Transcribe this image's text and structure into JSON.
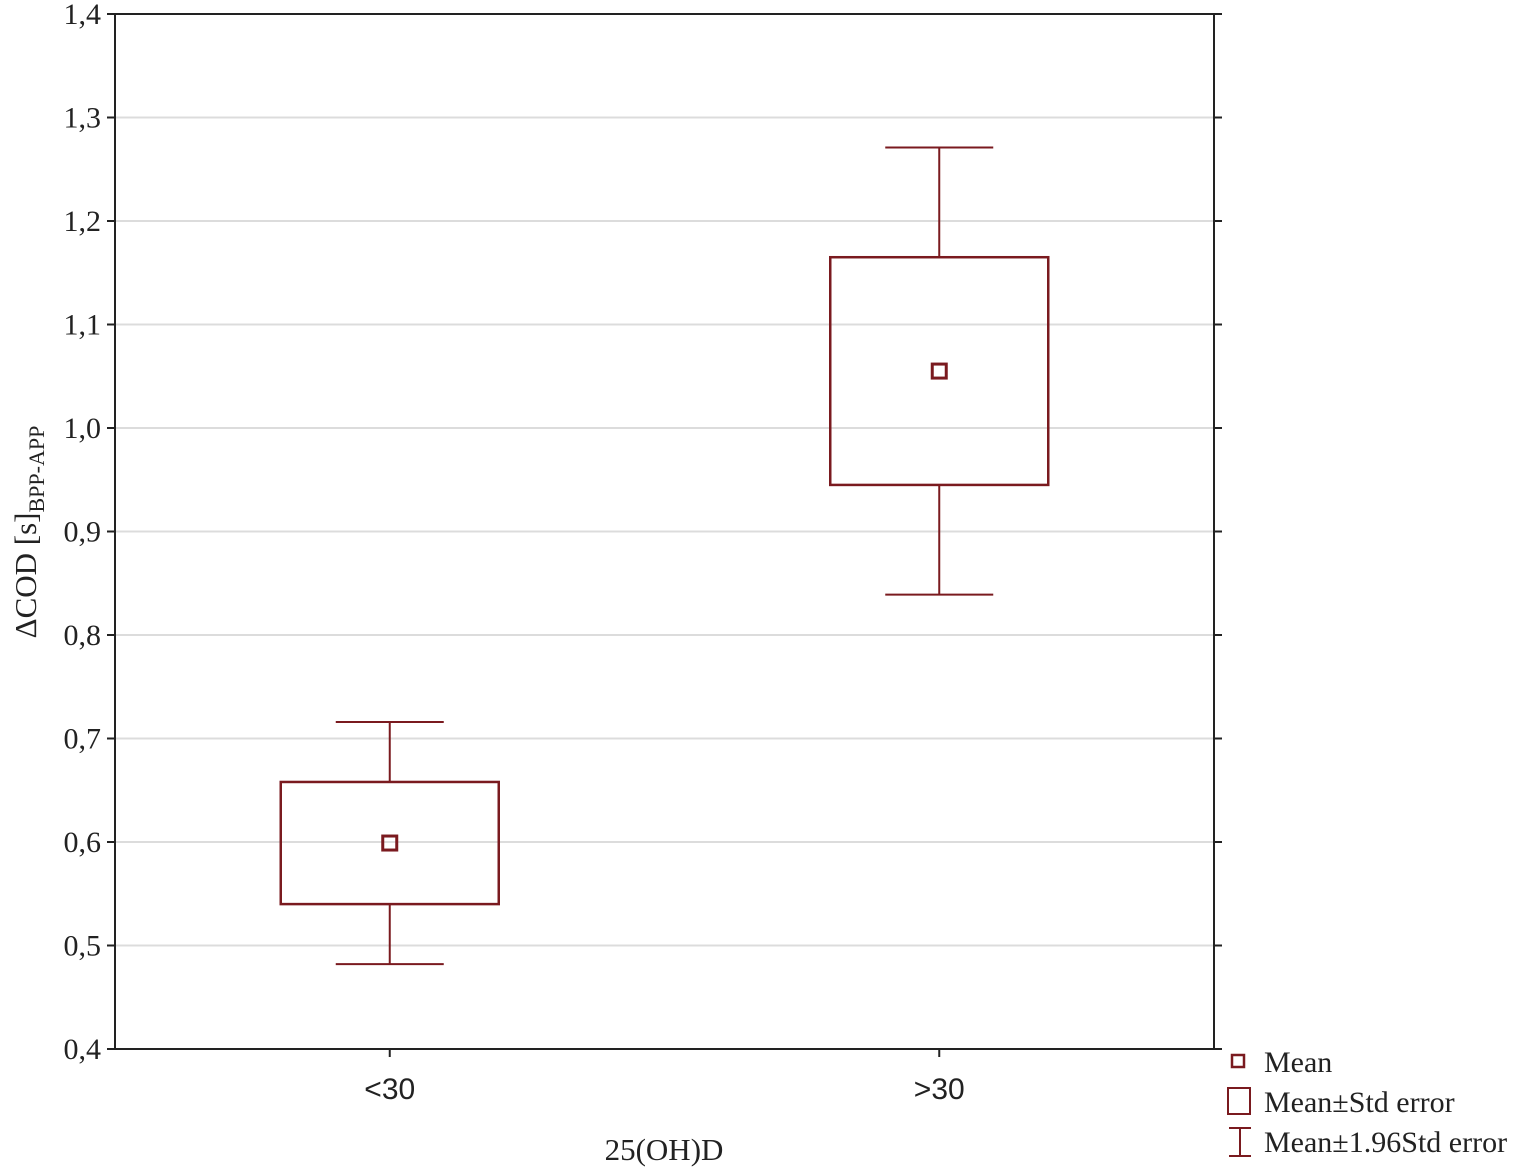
{
  "chart_data": {
    "type": "box",
    "title": "",
    "xlabel": "25(OH)D",
    "ylabel": "ΔCOD [s]",
    "ylabel_sub": "BPP-APP",
    "ylim": [
      0.4,
      1.4
    ],
    "yticks": [
      0.4,
      0.5,
      0.6,
      0.7,
      0.8,
      0.9,
      1.0,
      1.1,
      1.2,
      1.3,
      1.4
    ],
    "ytick_labels": [
      "0,4",
      "0,5",
      "0,6",
      "0,7",
      "0,8",
      "0,9",
      "1,0",
      "1,1",
      "1,2",
      "1,3",
      "1,4"
    ],
    "categories": [
      "<30",
      ">30"
    ],
    "groups": [
      {
        "category": "<30",
        "mean": 0.599,
        "se_low": 0.54,
        "se_high": 0.658,
        "ci_low": 0.482,
        "ci_high": 0.716
      },
      {
        "category": ">30",
        "mean": 1.055,
        "se_low": 0.945,
        "se_high": 1.165,
        "ci_low": 0.839,
        "ci_high": 1.271
      }
    ],
    "grid": true,
    "color": "#7a1a1f",
    "legend": {
      "position": "bottom-right",
      "entries": [
        "Mean",
        "Mean±Std error",
        "Mean±1.96Std error"
      ]
    }
  }
}
